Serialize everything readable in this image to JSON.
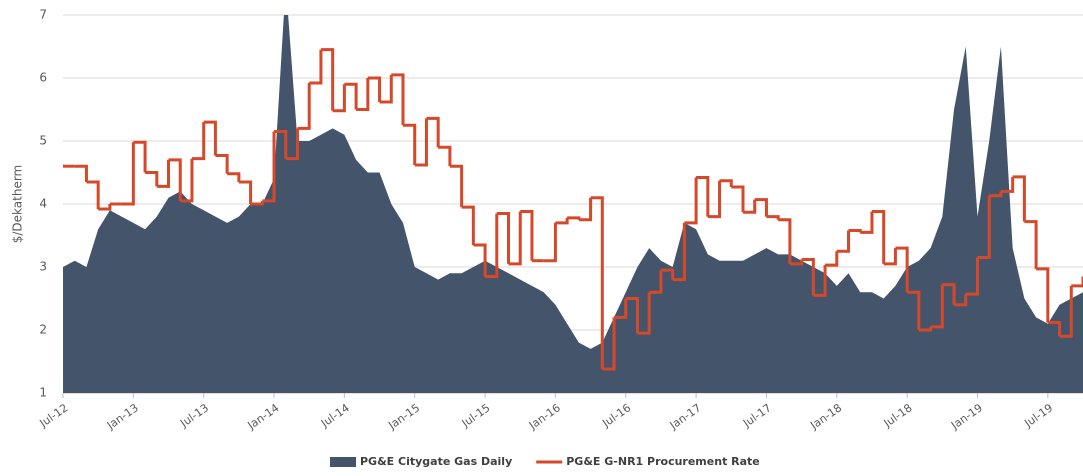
{
  "chart_data": {
    "type": "area",
    "y_label": "$/Dekatherm",
    "categories": [
      "Jul-12",
      null,
      null,
      null,
      null,
      null,
      "Jan-13",
      null,
      null,
      null,
      null,
      null,
      "Jul-13",
      null,
      null,
      null,
      null,
      null,
      "Jan-14",
      null,
      null,
      null,
      null,
      null,
      "Jul-14",
      null,
      null,
      null,
      null,
      null,
      "Jan-15",
      null,
      null,
      null,
      null,
      null,
      "Jul-15",
      null,
      null,
      null,
      null,
      null,
      "Jan-16",
      null,
      null,
      null,
      null,
      null,
      "Jul-16",
      null,
      null,
      null,
      null,
      null,
      "Jan-17",
      null,
      null,
      null,
      null,
      null,
      "Jul-17",
      null,
      null,
      null,
      null,
      null,
      "Jan-18",
      null,
      null,
      null,
      null,
      null,
      "Jul-18",
      null,
      null,
      null,
      null,
      null,
      "Jan-19",
      null,
      null,
      null,
      null,
      null,
      "Jul-19",
      null,
      null,
      null
    ],
    "series": [
      {
        "name": "PG&E Citygate Gas Daily",
        "color": "#44546a",
        "style": "area",
        "values": [
          3.0,
          3.1,
          3.0,
          3.6,
          3.9,
          3.8,
          3.7,
          3.6,
          3.8,
          4.1,
          4.2,
          4.0,
          3.9,
          3.8,
          3.7,
          3.8,
          4.0,
          4.0,
          4.4,
          7.5,
          5.0,
          5.0,
          5.1,
          5.2,
          5.1,
          4.7,
          4.5,
          4.5,
          4.0,
          3.7,
          3.0,
          2.9,
          2.8,
          2.9,
          2.9,
          3.0,
          3.1,
          3.0,
          2.9,
          2.8,
          2.7,
          2.6,
          2.4,
          2.1,
          1.8,
          1.7,
          1.8,
          2.2,
          2.6,
          3.0,
          3.3,
          3.1,
          3.0,
          3.7,
          3.6,
          3.2,
          3.1,
          3.1,
          3.1,
          3.2,
          3.3,
          3.2,
          3.2,
          3.1,
          3.0,
          2.9,
          2.7,
          2.9,
          2.6,
          2.6,
          2.5,
          2.7,
          3.0,
          3.1,
          3.3,
          3.8,
          5.5,
          6.5,
          3.8,
          5.0,
          6.5,
          3.3,
          2.5,
          2.2,
          2.1,
          2.4,
          2.5,
          2.6
        ]
      },
      {
        "name": "PG&E G-NR1 Procurement Rate",
        "color": "#d5482a",
        "style": "step",
        "values": [
          4.6,
          4.6,
          4.35,
          3.92,
          4.0,
          4.0,
          4.98,
          4.5,
          4.28,
          4.7,
          4.05,
          4.72,
          5.3,
          4.77,
          4.48,
          4.35,
          4.0,
          4.05,
          5.15,
          4.72,
          5.2,
          5.92,
          6.45,
          5.48,
          5.9,
          5.5,
          6.0,
          5.62,
          6.05,
          5.25,
          4.62,
          5.36,
          4.9,
          4.6,
          3.95,
          3.35,
          2.85,
          3.85,
          3.05,
          3.88,
          3.1,
          3.1,
          3.7,
          3.78,
          3.75,
          4.1,
          1.38,
          2.2,
          2.5,
          1.95,
          2.6,
          2.95,
          2.8,
          3.7,
          4.42,
          3.8,
          4.37,
          4.27,
          3.87,
          4.07,
          3.8,
          3.75,
          3.05,
          3.12,
          2.55,
          3.03,
          3.25,
          3.58,
          3.55,
          3.88,
          3.05,
          3.3,
          2.6,
          2.0,
          2.05,
          2.72,
          2.4,
          2.57,
          3.15,
          4.13,
          4.2,
          4.43,
          3.72,
          2.97,
          2.12,
          1.9,
          2.7,
          2.85
        ]
      }
    ],
    "ylim": [
      1,
      7
    ],
    "yticks": [
      1,
      2,
      3,
      4,
      5,
      6,
      7
    ],
    "grid": true
  }
}
